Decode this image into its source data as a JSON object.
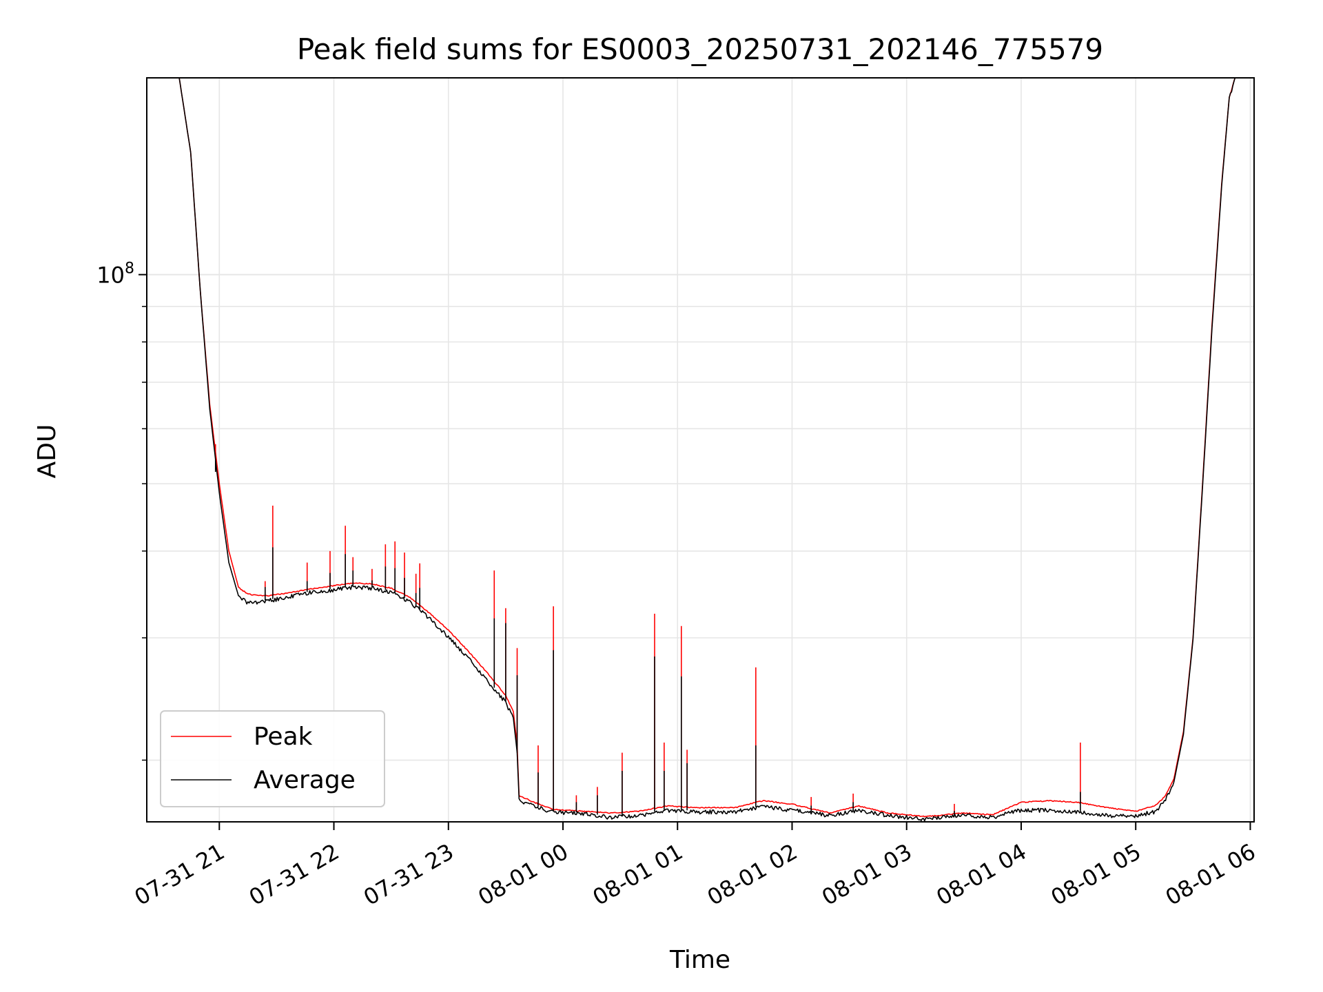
{
  "chart_data": {
    "type": "line",
    "title": "Peak field sums for ES0003_20250731_202146_775579",
    "xlabel": "Time",
    "ylabel": "ADU",
    "yscale": "log",
    "grid": true,
    "legend_position": "lower-left",
    "xlim": [
      "2025-07-31 20:22",
      "2025-08-01 06:02"
    ],
    "ylim": [
      16300000,
      192000000
    ],
    "x_ticks": [
      {
        "t": "2025-07-31 21:00",
        "label": "07-31 21"
      },
      {
        "t": "2025-07-31 22:00",
        "label": "07-31 22"
      },
      {
        "t": "2025-07-31 23:00",
        "label": "07-31 23"
      },
      {
        "t": "2025-08-01 00:00",
        "label": "08-01 00"
      },
      {
        "t": "2025-08-01 01:00",
        "label": "08-01 01"
      },
      {
        "t": "2025-08-01 02:00",
        "label": "08-01 02"
      },
      {
        "t": "2025-08-01 03:00",
        "label": "08-01 03"
      },
      {
        "t": "2025-08-01 04:00",
        "label": "08-01 04"
      },
      {
        "t": "2025-08-01 05:00",
        "label": "08-01 05"
      },
      {
        "t": "2025-08-01 06:00",
        "label": "08-01 06"
      }
    ],
    "y_major_tick": {
      "value": 100000000,
      "label_base": "10",
      "label_exp": "8"
    },
    "series": [
      {
        "name": "Peak",
        "color": "#ff0000",
        "points": [
          [
            "2025-07-31 20:39",
            192000000
          ],
          [
            "2025-07-31 20:45",
            150000000
          ],
          [
            "2025-07-31 20:50",
            95000000
          ],
          [
            "2025-07-31 20:55",
            65000000
          ],
          [
            "2025-07-31 21:00",
            50000000
          ],
          [
            "2025-07-31 21:05",
            40000000
          ],
          [
            "2025-07-31 21:10",
            35500000
          ],
          [
            "2025-07-31 21:15",
            34700000
          ],
          [
            "2025-07-31 21:25",
            34500000
          ],
          [
            "2025-07-31 21:35",
            34800000
          ],
          [
            "2025-07-31 21:45",
            35200000
          ],
          [
            "2025-07-31 22:00",
            35700000
          ],
          [
            "2025-07-31 22:10",
            36000000
          ],
          [
            "2025-07-31 22:20",
            35900000
          ],
          [
            "2025-07-31 22:30",
            35400000
          ],
          [
            "2025-07-31 22:40",
            34300000
          ],
          [
            "2025-07-31 22:50",
            32600000
          ],
          [
            "2025-07-31 23:00",
            30800000
          ],
          [
            "2025-07-31 23:10",
            28800000
          ],
          [
            "2025-07-31 23:20",
            26800000
          ],
          [
            "2025-07-31 23:30",
            24800000
          ],
          [
            "2025-07-31 23:34",
            23500000
          ],
          [
            "2025-07-31 23:36",
            21000000
          ],
          [
            "2025-07-31 23:37",
            17800000
          ],
          [
            "2025-07-31 23:45",
            17400000
          ],
          [
            "2025-07-31 23:55",
            17000000
          ],
          [
            "2025-08-01 00:10",
            16900000
          ],
          [
            "2025-08-01 00:25",
            16800000
          ],
          [
            "2025-08-01 00:40",
            16900000
          ],
          [
            "2025-08-01 00:55",
            17200000
          ],
          [
            "2025-08-01 01:10",
            17100000
          ],
          [
            "2025-08-01 01:30",
            17100000
          ],
          [
            "2025-08-01 01:45",
            17500000
          ],
          [
            "2025-08-01 02:00",
            17300000
          ],
          [
            "2025-08-01 02:20",
            16800000
          ],
          [
            "2025-08-01 02:35",
            17200000
          ],
          [
            "2025-08-01 02:50",
            16800000
          ],
          [
            "2025-08-01 03:10",
            16600000
          ],
          [
            "2025-08-01 03:30",
            16800000
          ],
          [
            "2025-08-01 03:45",
            16700000
          ],
          [
            "2025-08-01 04:00",
            17400000
          ],
          [
            "2025-08-01 04:15",
            17500000
          ],
          [
            "2025-08-01 04:30",
            17400000
          ],
          [
            "2025-08-01 04:45",
            17100000
          ],
          [
            "2025-08-01 05:00",
            16900000
          ],
          [
            "2025-08-01 05:10",
            17200000
          ],
          [
            "2025-08-01 05:15",
            17700000
          ],
          [
            "2025-08-01 05:20",
            18800000
          ],
          [
            "2025-08-01 05:25",
            22000000
          ],
          [
            "2025-08-01 05:30",
            30000000
          ],
          [
            "2025-08-01 05:35",
            50000000
          ],
          [
            "2025-08-01 05:40",
            85000000
          ],
          [
            "2025-08-01 05:45",
            135000000
          ],
          [
            "2025-08-01 05:49",
            180000000
          ],
          [
            "2025-08-01 05:52",
            192000000
          ]
        ],
        "spikes": [
          [
            "2025-07-31 20:58",
            57000000
          ],
          [
            "2025-07-31 21:24",
            36200000
          ],
          [
            "2025-07-31 21:28",
            46500000
          ],
          [
            "2025-07-31 21:46",
            38500000
          ],
          [
            "2025-07-31 21:58",
            40000000
          ],
          [
            "2025-07-31 22:06",
            43500000
          ],
          [
            "2025-07-31 22:10",
            39200000
          ],
          [
            "2025-07-31 22:20",
            37700000
          ],
          [
            "2025-07-31 22:27",
            40900000
          ],
          [
            "2025-07-31 22:32",
            41300000
          ],
          [
            "2025-07-31 22:37",
            39800000
          ],
          [
            "2025-07-31 22:43",
            37100000
          ],
          [
            "2025-07-31 22:45",
            38400000
          ],
          [
            "2025-07-31 23:24",
            37500000
          ],
          [
            "2025-07-31 23:30",
            33100000
          ],
          [
            "2025-07-31 23:36",
            29000000
          ],
          [
            "2025-07-31 23:47",
            21000000
          ],
          [
            "2025-07-31 23:55",
            33300000
          ],
          [
            "2025-08-01 00:07",
            17800000
          ],
          [
            "2025-08-01 00:18",
            18300000
          ],
          [
            "2025-08-01 00:31",
            20500000
          ],
          [
            "2025-08-01 00:48",
            32500000
          ],
          [
            "2025-08-01 00:53",
            21200000
          ],
          [
            "2025-08-01 01:02",
            31200000
          ],
          [
            "2025-08-01 01:05",
            20700000
          ],
          [
            "2025-08-01 01:41",
            27200000
          ],
          [
            "2025-08-01 02:10",
            17700000
          ],
          [
            "2025-08-01 02:32",
            17900000
          ],
          [
            "2025-08-01 03:25",
            17300000
          ],
          [
            "2025-08-01 04:31",
            21200000
          ]
        ]
      },
      {
        "name": "Average",
        "color": "#000000",
        "points": [
          [
            "2025-07-31 20:39",
            192000000
          ],
          [
            "2025-07-31 20:45",
            150000000
          ],
          [
            "2025-07-31 20:50",
            95000000
          ],
          [
            "2025-07-31 20:55",
            64000000
          ],
          [
            "2025-07-31 21:00",
            48500000
          ],
          [
            "2025-07-31 21:05",
            38500000
          ],
          [
            "2025-07-31 21:10",
            34500000
          ],
          [
            "2025-07-31 21:15",
            33800000
          ],
          [
            "2025-07-31 21:25",
            34000000
          ],
          [
            "2025-07-31 21:35",
            34400000
          ],
          [
            "2025-07-31 21:45",
            34900000
          ],
          [
            "2025-07-31 22:00",
            35300000
          ],
          [
            "2025-07-31 22:10",
            35600000
          ],
          [
            "2025-07-31 22:20",
            35500000
          ],
          [
            "2025-07-31 22:30",
            35000000
          ],
          [
            "2025-07-31 22:40",
            33900000
          ],
          [
            "2025-07-31 22:50",
            32100000
          ],
          [
            "2025-07-31 23:00",
            30200000
          ],
          [
            "2025-07-31 23:10",
            28200000
          ],
          [
            "2025-07-31 23:20",
            26200000
          ],
          [
            "2025-07-31 23:30",
            24300000
          ],
          [
            "2025-07-31 23:34",
            23000000
          ],
          [
            "2025-07-31 23:36",
            20500000
          ],
          [
            "2025-07-31 23:37",
            17600000
          ],
          [
            "2025-07-31 23:45",
            17200000
          ],
          [
            "2025-07-31 23:55",
            16900000
          ],
          [
            "2025-08-01 00:10",
            16800000
          ],
          [
            "2025-08-01 00:25",
            16600000
          ],
          [
            "2025-08-01 00:40",
            16700000
          ],
          [
            "2025-08-01 00:55",
            17000000
          ],
          [
            "2025-08-01 01:10",
            16900000
          ],
          [
            "2025-08-01 01:30",
            16900000
          ],
          [
            "2025-08-01 01:45",
            17200000
          ],
          [
            "2025-08-01 02:00",
            17000000
          ],
          [
            "2025-08-01 02:20",
            16700000
          ],
          [
            "2025-08-01 02:35",
            17000000
          ],
          [
            "2025-08-01 02:50",
            16700000
          ],
          [
            "2025-08-01 03:10",
            16500000
          ],
          [
            "2025-08-01 03:30",
            16700000
          ],
          [
            "2025-08-01 03:45",
            16600000
          ],
          [
            "2025-08-01 04:00",
            17000000
          ],
          [
            "2025-08-01 04:15",
            17000000
          ],
          [
            "2025-08-01 04:30",
            16900000
          ],
          [
            "2025-08-01 04:45",
            16700000
          ],
          [
            "2025-08-01 05:00",
            16700000
          ],
          [
            "2025-08-01 05:10",
            16900000
          ],
          [
            "2025-08-01 05:15",
            17500000
          ],
          [
            "2025-08-01 05:20",
            18600000
          ],
          [
            "2025-08-01 05:25",
            21800000
          ],
          [
            "2025-08-01 05:30",
            29800000
          ],
          [
            "2025-08-01 05:35",
            49500000
          ],
          [
            "2025-08-01 05:40",
            84000000
          ],
          [
            "2025-08-01 05:45",
            134000000
          ],
          [
            "2025-08-01 05:49",
            180000000
          ],
          [
            "2025-08-01 05:52",
            192000000
          ]
        ],
        "spikes": [
          [
            "2025-07-31 20:58",
            52000000
          ],
          [
            "2025-07-31 21:24",
            35500000
          ],
          [
            "2025-07-31 21:28",
            40500000
          ],
          [
            "2025-07-31 21:46",
            36200000
          ],
          [
            "2025-07-31 21:58",
            37200000
          ],
          [
            "2025-07-31 22:06",
            39600000
          ],
          [
            "2025-07-31 22:10",
            37500000
          ],
          [
            "2025-07-31 22:20",
            36300000
          ],
          [
            "2025-07-31 22:27",
            38000000
          ],
          [
            "2025-07-31 22:32",
            37800000
          ],
          [
            "2025-07-31 22:37",
            36600000
          ],
          [
            "2025-07-31 22:43",
            34800000
          ],
          [
            "2025-07-31 22:45",
            35400000
          ],
          [
            "2025-07-31 23:24",
            32000000
          ],
          [
            "2025-07-31 23:30",
            31500000
          ],
          [
            "2025-07-31 23:36",
            26500000
          ],
          [
            "2025-07-31 23:47",
            19200000
          ],
          [
            "2025-07-31 23:55",
            28800000
          ],
          [
            "2025-08-01 00:07",
            17400000
          ],
          [
            "2025-08-01 00:18",
            17800000
          ],
          [
            "2025-08-01 00:31",
            19300000
          ],
          [
            "2025-08-01 00:48",
            28200000
          ],
          [
            "2025-08-01 00:53",
            19300000
          ],
          [
            "2025-08-01 01:02",
            26400000
          ],
          [
            "2025-08-01 01:05",
            19800000
          ],
          [
            "2025-08-01 01:41",
            21000000
          ],
          [
            "2025-08-01 02:10",
            17200000
          ],
          [
            "2025-08-01 02:32",
            17400000
          ],
          [
            "2025-08-01 03:25",
            16900000
          ],
          [
            "2025-08-01 04:31",
            18000000
          ]
        ]
      }
    ]
  }
}
